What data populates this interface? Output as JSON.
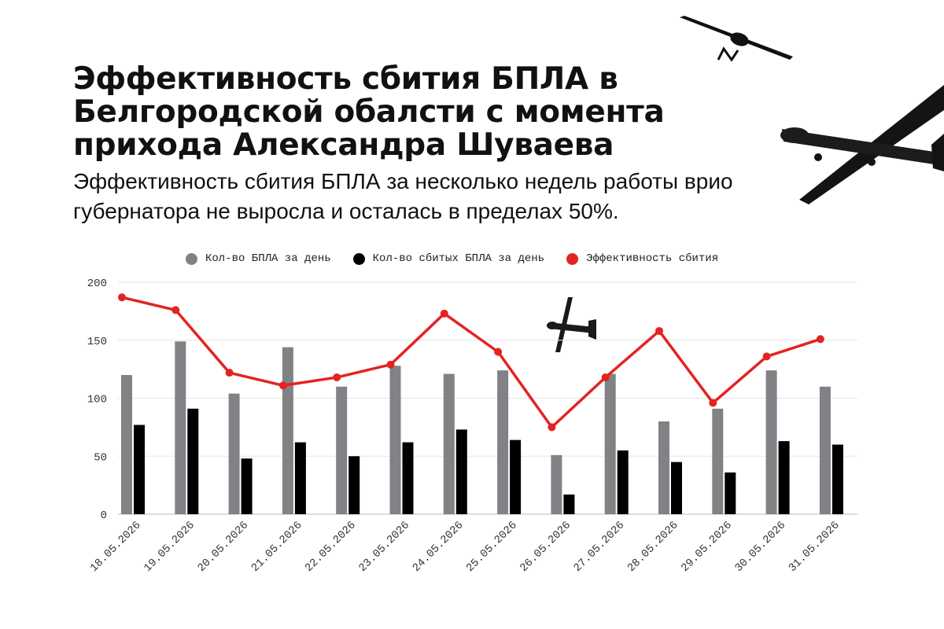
{
  "header": {
    "title": "Эффективность сбития БПЛА в Белгородской обалсти с момента прихода Александра Шуваева",
    "subtitle": "Эффективность сбития БПЛА за несколько недель работы врио губернатора не выросла и осталась в пределах 50%."
  },
  "colors": {
    "total": "#808285",
    "downed": "#000000",
    "efficiency": "#e32322",
    "grid": "#e6e6e6"
  },
  "chart_data": {
    "type": "bar",
    "title": "",
    "xlabel": "",
    "ylabel": "",
    "ylim": [
      0,
      200
    ],
    "yticks": [
      0,
      50,
      100,
      150,
      200
    ],
    "grid": true,
    "legend_position": "top",
    "categories": [
      "18.05.2026",
      "19.05.2026",
      "20.05.2026",
      "21.05.2026",
      "22.05.2026",
      "23.05.2026",
      "24.05.2026",
      "25.05.2026",
      "26.05.2026",
      "27.05.2026",
      "28.05.2026",
      "29.05.2026",
      "30.05.2026",
      "31.05.2026"
    ],
    "series": [
      {
        "name": "Кол-во БПЛА за день",
        "type": "bar",
        "color": "#808285",
        "values": [
          120,
          149,
          104,
          144,
          110,
          128,
          121,
          124,
          51,
          121,
          80,
          91,
          124,
          110
        ]
      },
      {
        "name": "Кол-во сбитых БПЛА за день",
        "type": "bar",
        "color": "#000000",
        "values": [
          77,
          91,
          48,
          62,
          50,
          62,
          73,
          64,
          17,
          55,
          45,
          36,
          63,
          60
        ]
      },
      {
        "name": "Эффективность сбития",
        "type": "line",
        "color": "#e32322",
        "values": [
          187,
          176,
          122,
          111,
          118,
          129,
          173,
          140,
          75,
          118,
          158,
          96,
          136,
          151
        ]
      }
    ]
  }
}
